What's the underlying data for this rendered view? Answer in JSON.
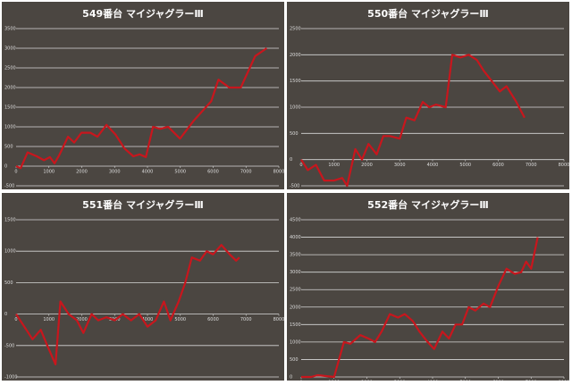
{
  "chart_data": [
    {
      "type": "line",
      "title": "549番台 マイジャグラーⅢ",
      "color": "#c8161d",
      "grid": true,
      "x": [
        0,
        140,
        350,
        630,
        850,
        1030,
        1170,
        1310,
        1580,
        1770,
        1990,
        2260,
        2480,
        2750,
        3030,
        3300,
        3570,
        3760,
        3950,
        4170,
        4390,
        4630,
        4990,
        5400,
        5940,
        6160,
        6490,
        6840,
        7280,
        7630
      ],
      "values": [
        0,
        -50,
        350,
        250,
        150,
        230,
        70,
        270,
        750,
        600,
        850,
        850,
        750,
        1050,
        800,
        450,
        250,
        300,
        230,
        1000,
        950,
        1000,
        700,
        1150,
        1650,
        2200,
        2000,
        2000,
        2800,
        3000
      ],
      "xlim": [
        0,
        8000
      ],
      "xticks": [
        0,
        1000,
        2000,
        3000,
        4000,
        5000,
        6000,
        7000,
        8000
      ],
      "ylim": [
        -500,
        3500
      ],
      "yticks": [
        -500,
        0,
        500,
        1000,
        1500,
        2000,
        2500,
        3000,
        3500
      ]
    },
    {
      "type": "line",
      "title": "550番台 マイジャグラーⅢ",
      "color": "#c8161d",
      "grid": true,
      "x": [
        0,
        200,
        450,
        700,
        1000,
        1250,
        1400,
        1650,
        1850,
        2050,
        2300,
        2500,
        2700,
        3000,
        3200,
        3450,
        3700,
        3900,
        4100,
        4400,
        4600,
        4850,
        5100,
        5350,
        5550,
        5800,
        6050,
        6250,
        6550,
        6800
      ],
      "values": [
        0,
        -200,
        -100,
        -400,
        -400,
        -350,
        -500,
        200,
        0,
        300,
        100,
        450,
        450,
        400,
        800,
        750,
        1100,
        1000,
        1050,
        1000,
        2000,
        1950,
        2000,
        1900,
        1700,
        1500,
        1300,
        1400,
        1100,
        800
      ],
      "xlim": [
        0,
        8000
      ],
      "xticks": [
        0,
        1000,
        2000,
        3000,
        4000,
        5000,
        6000,
        7000,
        8000
      ],
      "ylim": [
        -500,
        2500
      ],
      "yticks": [
        -500,
        0,
        500,
        1000,
        1500,
        2000,
        2500
      ]
    },
    {
      "type": "line",
      "title": "551番台 マイジャグラーⅢ",
      "color": "#c8161d",
      "grid": true,
      "x": [
        0,
        250,
        500,
        750,
        950,
        1200,
        1350,
        1600,
        1850,
        2050,
        2300,
        2500,
        2750,
        3000,
        3250,
        3500,
        3750,
        4000,
        4250,
        4500,
        4700,
        4950,
        5150,
        5350,
        5600,
        5800,
        6000,
        6250,
        6500,
        6700,
        6800
      ],
      "values": [
        0,
        -200,
        -400,
        -250,
        -500,
        -800,
        200,
        0,
        -100,
        -300,
        0,
        -100,
        -50,
        -100,
        0,
        -100,
        0,
        -200,
        -100,
        200,
        -100,
        200,
        500,
        900,
        850,
        1000,
        950,
        1100,
        950,
        850,
        900
      ],
      "xlim": [
        0,
        8000
      ],
      "xticks": [
        0,
        1000,
        2000,
        3000,
        4000,
        5000,
        6000,
        7000,
        8000
      ],
      "ylim": [
        -1000,
        1500
      ],
      "yticks": [
        -1000,
        -500,
        0,
        500,
        1000,
        1500
      ]
    },
    {
      "type": "line",
      "title": "552番台 マイジャグラーⅢ",
      "color": "#c8161d",
      "grid": true,
      "x": [
        0,
        300,
        500,
        1000,
        1300,
        1500,
        1800,
        2050,
        2250,
        2450,
        2700,
        2950,
        3150,
        3400,
        3600,
        3850,
        4050,
        4300,
        4500,
        4700,
        4900,
        5100,
        5300,
        5550,
        5750,
        6000,
        6250,
        6500,
        6700,
        6850,
        7000,
        7200
      ],
      "values": [
        0,
        0,
        50,
        0,
        1000,
        950,
        1200,
        1100,
        1000,
        1300,
        1800,
        1700,
        1800,
        1600,
        1300,
        1000,
        800,
        1300,
        1100,
        1500,
        1500,
        2000,
        1900,
        2100,
        2000,
        2600,
        3100,
        2950,
        3000,
        3300,
        3100,
        4000
      ],
      "xlim": [
        0,
        8000
      ],
      "xticks": [
        0,
        1000,
        2000,
        3000,
        4000,
        5000,
        6000,
        7000,
        8000
      ],
      "ylim": [
        0,
        4500
      ],
      "yticks": [
        0,
        500,
        1000,
        1500,
        2000,
        2500,
        3000,
        3500,
        4000,
        4500
      ]
    }
  ]
}
